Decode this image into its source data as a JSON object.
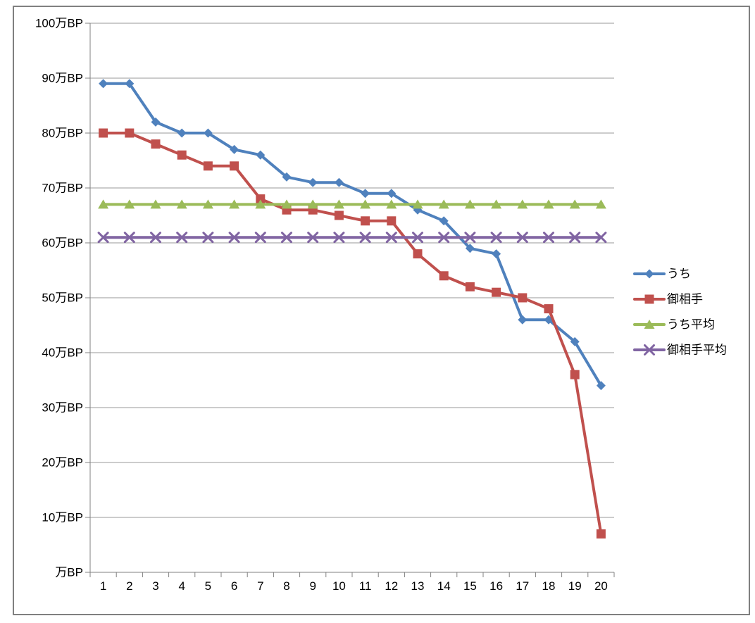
{
  "chart_data": {
    "type": "line",
    "title": "",
    "x_categories": [
      "1",
      "2",
      "3",
      "4",
      "5",
      "6",
      "7",
      "8",
      "9",
      "10",
      "11",
      "12",
      "13",
      "14",
      "15",
      "16",
      "17",
      "18",
      "19",
      "20"
    ],
    "series": [
      {
        "name": "うち",
        "color": "#4F81BD",
        "marker": "diamond",
        "values": [
          89,
          89,
          82,
          80,
          80,
          77,
          76,
          72,
          71,
          71,
          69,
          69,
          66,
          64,
          59,
          58,
          46,
          46,
          42,
          34
        ]
      },
      {
        "name": "御相手",
        "color": "#C0504D",
        "marker": "square",
        "values": [
          80,
          80,
          78,
          76,
          74,
          74,
          68,
          66,
          66,
          65,
          64,
          64,
          58,
          54,
          52,
          51,
          50,
          48,
          36,
          7
        ]
      },
      {
        "name": "うち平均",
        "color": "#9BBB59",
        "marker": "triangle",
        "values": [
          67,
          67,
          67,
          67,
          67,
          67,
          67,
          67,
          67,
          67,
          67,
          67,
          67,
          67,
          67,
          67,
          67,
          67,
          67,
          67
        ]
      },
      {
        "name": "御相手平均",
        "color": "#8064A2",
        "marker": "x-cross",
        "values": [
          61,
          61,
          61,
          61,
          61,
          61,
          61,
          61,
          61,
          61,
          61,
          61,
          61,
          61,
          61,
          61,
          61,
          61,
          61,
          61
        ]
      }
    ],
    "y_axis": {
      "unit": "万BP",
      "tick_labels": [
        "100万BP",
        "90万BP",
        "80万BP",
        "70万BP",
        "60万BP",
        "50万BP",
        "40万BP",
        "30万BP",
        "20万BP",
        "10万BP",
        "万BP"
      ],
      "tick_values": [
        100,
        90,
        80,
        70,
        60,
        50,
        40,
        30,
        20,
        10,
        0
      ],
      "min": 0,
      "max": 100
    },
    "grid": true,
    "legend_position": "right",
    "legend_entries": [
      "うち",
      "御相手",
      "うち平均",
      "御相手平均"
    ],
    "colors": {
      "axis": "#808080",
      "gridline": "#9A9A9A",
      "frame_border": "#808080",
      "background": "#FFFFFF",
      "text": "#000000"
    }
  }
}
